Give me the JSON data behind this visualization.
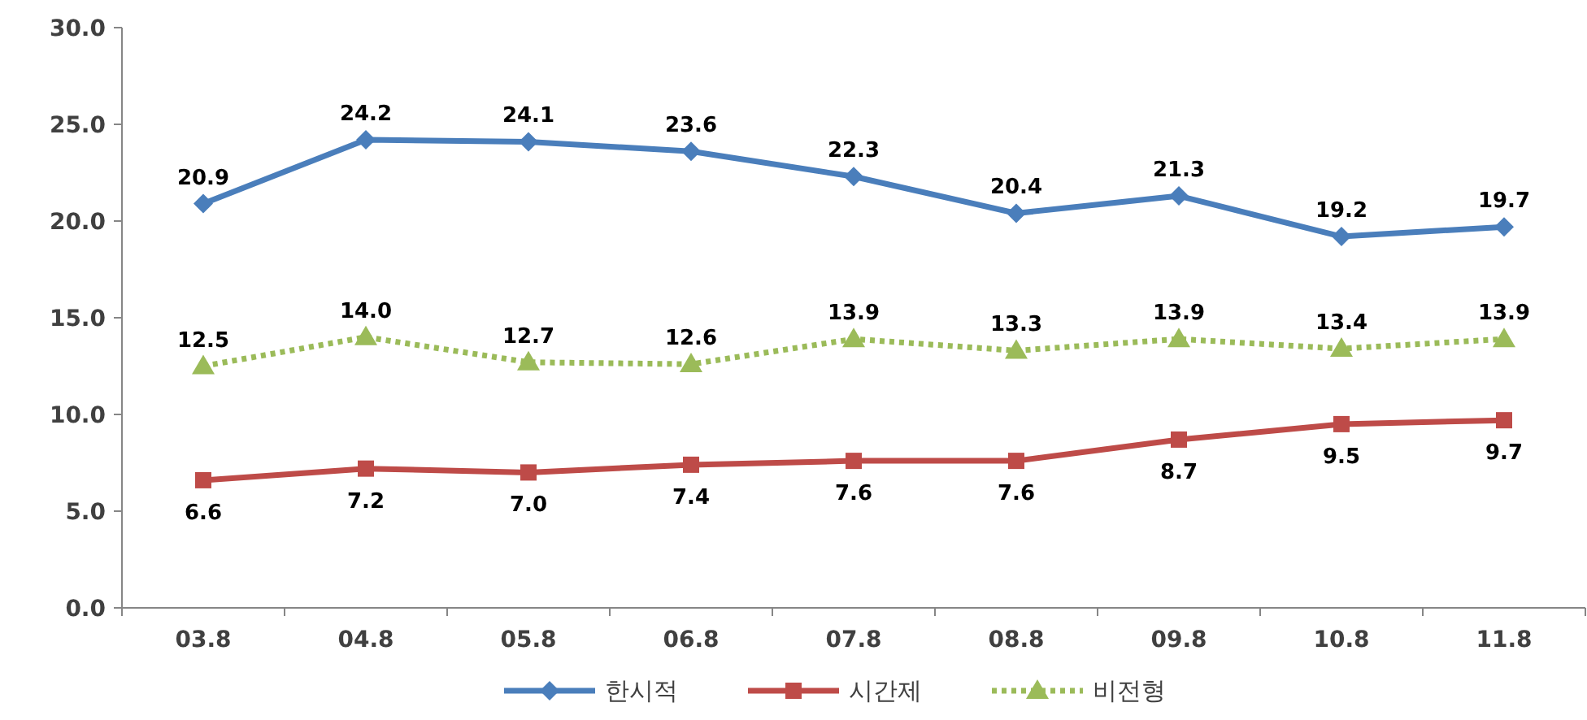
{
  "chart_data": {
    "type": "line",
    "categories": [
      "03.8",
      "04.8",
      "05.8",
      "06.8",
      "07.8",
      "08.8",
      "09.8",
      "10.8",
      "11.8"
    ],
    "series": [
      {
        "name": "한시적",
        "color": "#4a7ebb",
        "marker": "diamond",
        "line_style": "solid",
        "values": [
          20.9,
          24.2,
          24.1,
          23.6,
          22.3,
          20.4,
          21.3,
          19.2,
          19.7
        ],
        "value_labels": [
          "20.9",
          "24.2",
          "24.1",
          "23.6",
          "22.3",
          "20.4",
          "21.3",
          "19.2",
          "19.7"
        ]
      },
      {
        "name": "시간제",
        "color": "#be4b48",
        "marker": "square",
        "line_style": "solid",
        "values": [
          6.6,
          7.2,
          7.0,
          7.4,
          7.6,
          7.6,
          8.7,
          9.5,
          9.7
        ],
        "value_labels": [
          "6.6",
          "7.2",
          "7.0",
          "7.4",
          "7.6",
          "7.6",
          "8.7",
          "9.5",
          "9.7"
        ]
      },
      {
        "name": "비전형",
        "color": "#9bbb59",
        "marker": "triangle",
        "line_style": "dotted",
        "values": [
          12.5,
          14.0,
          12.7,
          12.6,
          13.9,
          13.3,
          13.9,
          13.4,
          13.9
        ],
        "value_labels": [
          "12.5",
          "14.0",
          "12.7",
          "12.6",
          "13.9",
          "13.3",
          "13.9",
          "13.4",
          "13.9"
        ]
      }
    ],
    "ylim": [
      0,
      30
    ],
    "yticks": [
      {
        "value": 0,
        "label": "0.0"
      },
      {
        "value": 5,
        "label": "5.0"
      },
      {
        "value": 10,
        "label": "10.0"
      },
      {
        "value": 15,
        "label": "15.0"
      },
      {
        "value": 20,
        "label": "20.0"
      },
      {
        "value": 25,
        "label": "25.0"
      },
      {
        "value": 30,
        "label": "30.0"
      }
    ],
    "grid": false,
    "legend": "bottom"
  }
}
